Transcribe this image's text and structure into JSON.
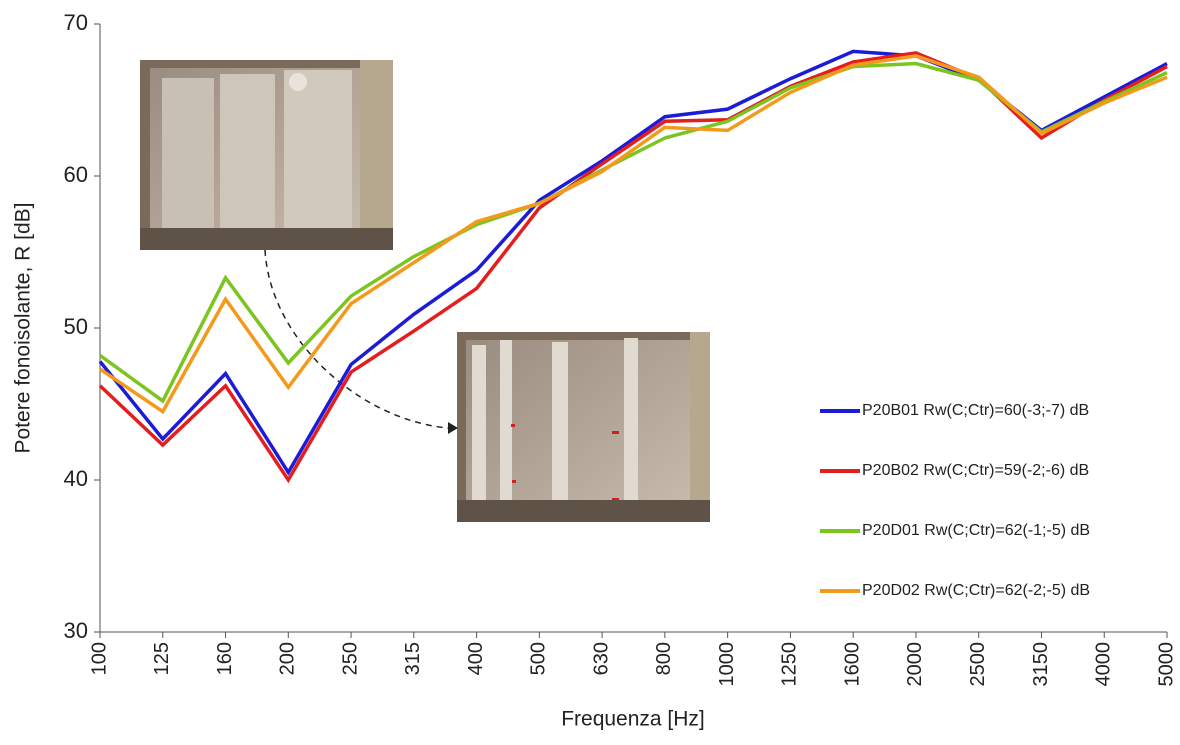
{
  "chart_data": {
    "type": "line",
    "y_label": "Potere fonoisolante, R [dB]",
    "x_label": "Frequenza [Hz]",
    "categories": [
      "100",
      "125",
      "160",
      "200",
      "250",
      "315",
      "400",
      "500",
      "630",
      "800",
      "1000",
      "1250",
      "1600",
      "2000",
      "2500",
      "3150",
      "4000",
      "5000"
    ],
    "series": [
      {
        "name": "P20B01 Rw(C;Ctr)=60(-3;-7) dB",
        "color": "#1c1cd6",
        "values": [
          47.8,
          42.7,
          47.0,
          40.5,
          47.6,
          50.9,
          53.8,
          58.4,
          61.0,
          63.9,
          64.4,
          66.4,
          68.2,
          67.9,
          66.3,
          63.0,
          65.2,
          67.4
        ]
      },
      {
        "name": "P20B02 Rw(C;Ctr)=59(-2;-6) dB",
        "color": "#e41e1e",
        "values": [
          46.2,
          42.3,
          46.2,
          40.0,
          47.1,
          49.8,
          52.6,
          57.9,
          60.8,
          63.6,
          63.7,
          65.9,
          67.5,
          68.1,
          66.4,
          62.5,
          65.0,
          67.2
        ]
      },
      {
        "name": "P20D01 Rw(C;Ctr)=62(-1;-5) dB",
        "color": "#7cc520",
        "values": [
          48.2,
          45.2,
          53.3,
          47.7,
          52.1,
          54.7,
          56.8,
          58.2,
          60.4,
          62.5,
          63.6,
          65.8,
          67.2,
          67.4,
          66.3,
          62.9,
          64.9,
          66.8
        ]
      },
      {
        "name": "P20D02 Rw(C;Ctr)=62(-2;-5) dB",
        "color": "#f39a1c",
        "values": [
          47.3,
          44.5,
          51.9,
          46.1,
          51.6,
          54.3,
          57.0,
          58.2,
          60.3,
          63.2,
          63.0,
          65.5,
          67.3,
          67.9,
          66.5,
          62.8,
          64.8,
          66.5
        ]
      }
    ],
    "ylim": [
      30,
      70
    ],
    "yticks": [
      30,
      40,
      50,
      60,
      70
    ],
    "grid": false,
    "legend": "right"
  }
}
